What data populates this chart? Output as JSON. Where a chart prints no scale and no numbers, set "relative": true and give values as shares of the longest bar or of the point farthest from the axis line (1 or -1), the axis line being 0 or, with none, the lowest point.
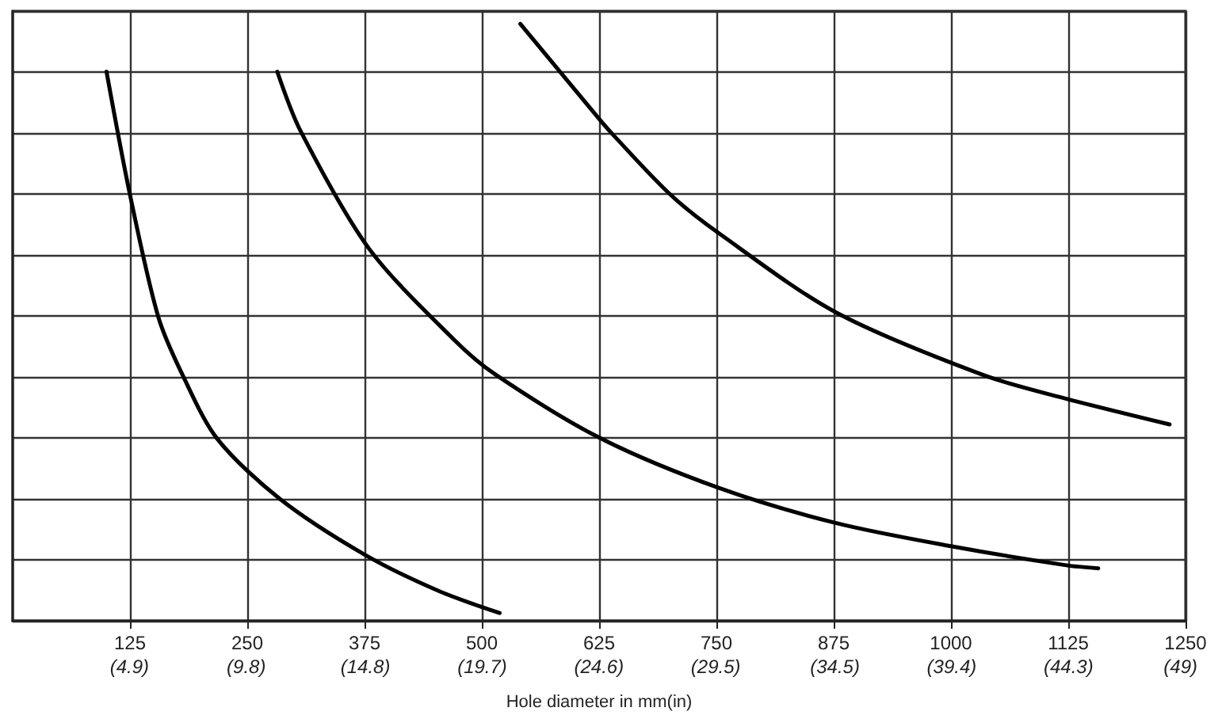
{
  "chart_data": {
    "type": "line",
    "relative": true,
    "xlabel": "Hole diameter in mm(in)",
    "xlim": [
      0,
      1250
    ],
    "xticks": [
      125,
      250,
      375,
      500,
      625,
      750,
      875,
      1000,
      1125,
      1250
    ],
    "x2lim": [
      0,
      49.21
    ],
    "x2ticks": [
      {
        "value": 4.9,
        "label": "(4.9)"
      },
      {
        "value": 9.8,
        "label": "(9.8)"
      },
      {
        "value": 14.8,
        "label": "(14.8)"
      },
      {
        "value": 19.7,
        "label": "(19.7)"
      },
      {
        "value": 24.6,
        "label": "(24.6)"
      },
      {
        "value": 29.5,
        "label": "(29.5)"
      },
      {
        "value": 34.5,
        "label": "(34.5)"
      },
      {
        "value": 39.4,
        "label": "(39.4)"
      },
      {
        "value": 44.3,
        "label": "(44.3)"
      },
      {
        "value": 49,
        "label": "(49)"
      }
    ],
    "series": [
      {
        "color": "#000000",
        "x": [
          100,
          125,
          155,
          181,
          218,
          285,
          375,
          454,
          519
        ],
        "values": [
          0.92,
          0.714,
          0.51,
          0.412,
          0.305,
          0.204,
          0.111,
          0.05,
          0.013
        ]
      },
      {
        "color": "#000000",
        "x": [
          282,
          307,
          380,
          471,
          515,
          625,
          752,
          877,
          1000,
          1123,
          1157
        ],
        "values": [
          0.92,
          0.82,
          0.623,
          0.47,
          0.412,
          0.307,
          0.223,
          0.164,
          0.125,
          0.093,
          0.088
        ]
      },
      {
        "color": "#000000",
        "x": [
          541,
          625,
          640,
          701,
          752,
          877,
          1034,
          1123,
          1233
        ],
        "values": [
          1,
          0.841,
          0.814,
          0.714,
          0.65,
          0.517,
          0.412,
          0.372,
          0.329
        ]
      }
    ],
    "grid": true,
    "tick_labels": "x",
    "marker": "none",
    "line_style": "solid"
  }
}
